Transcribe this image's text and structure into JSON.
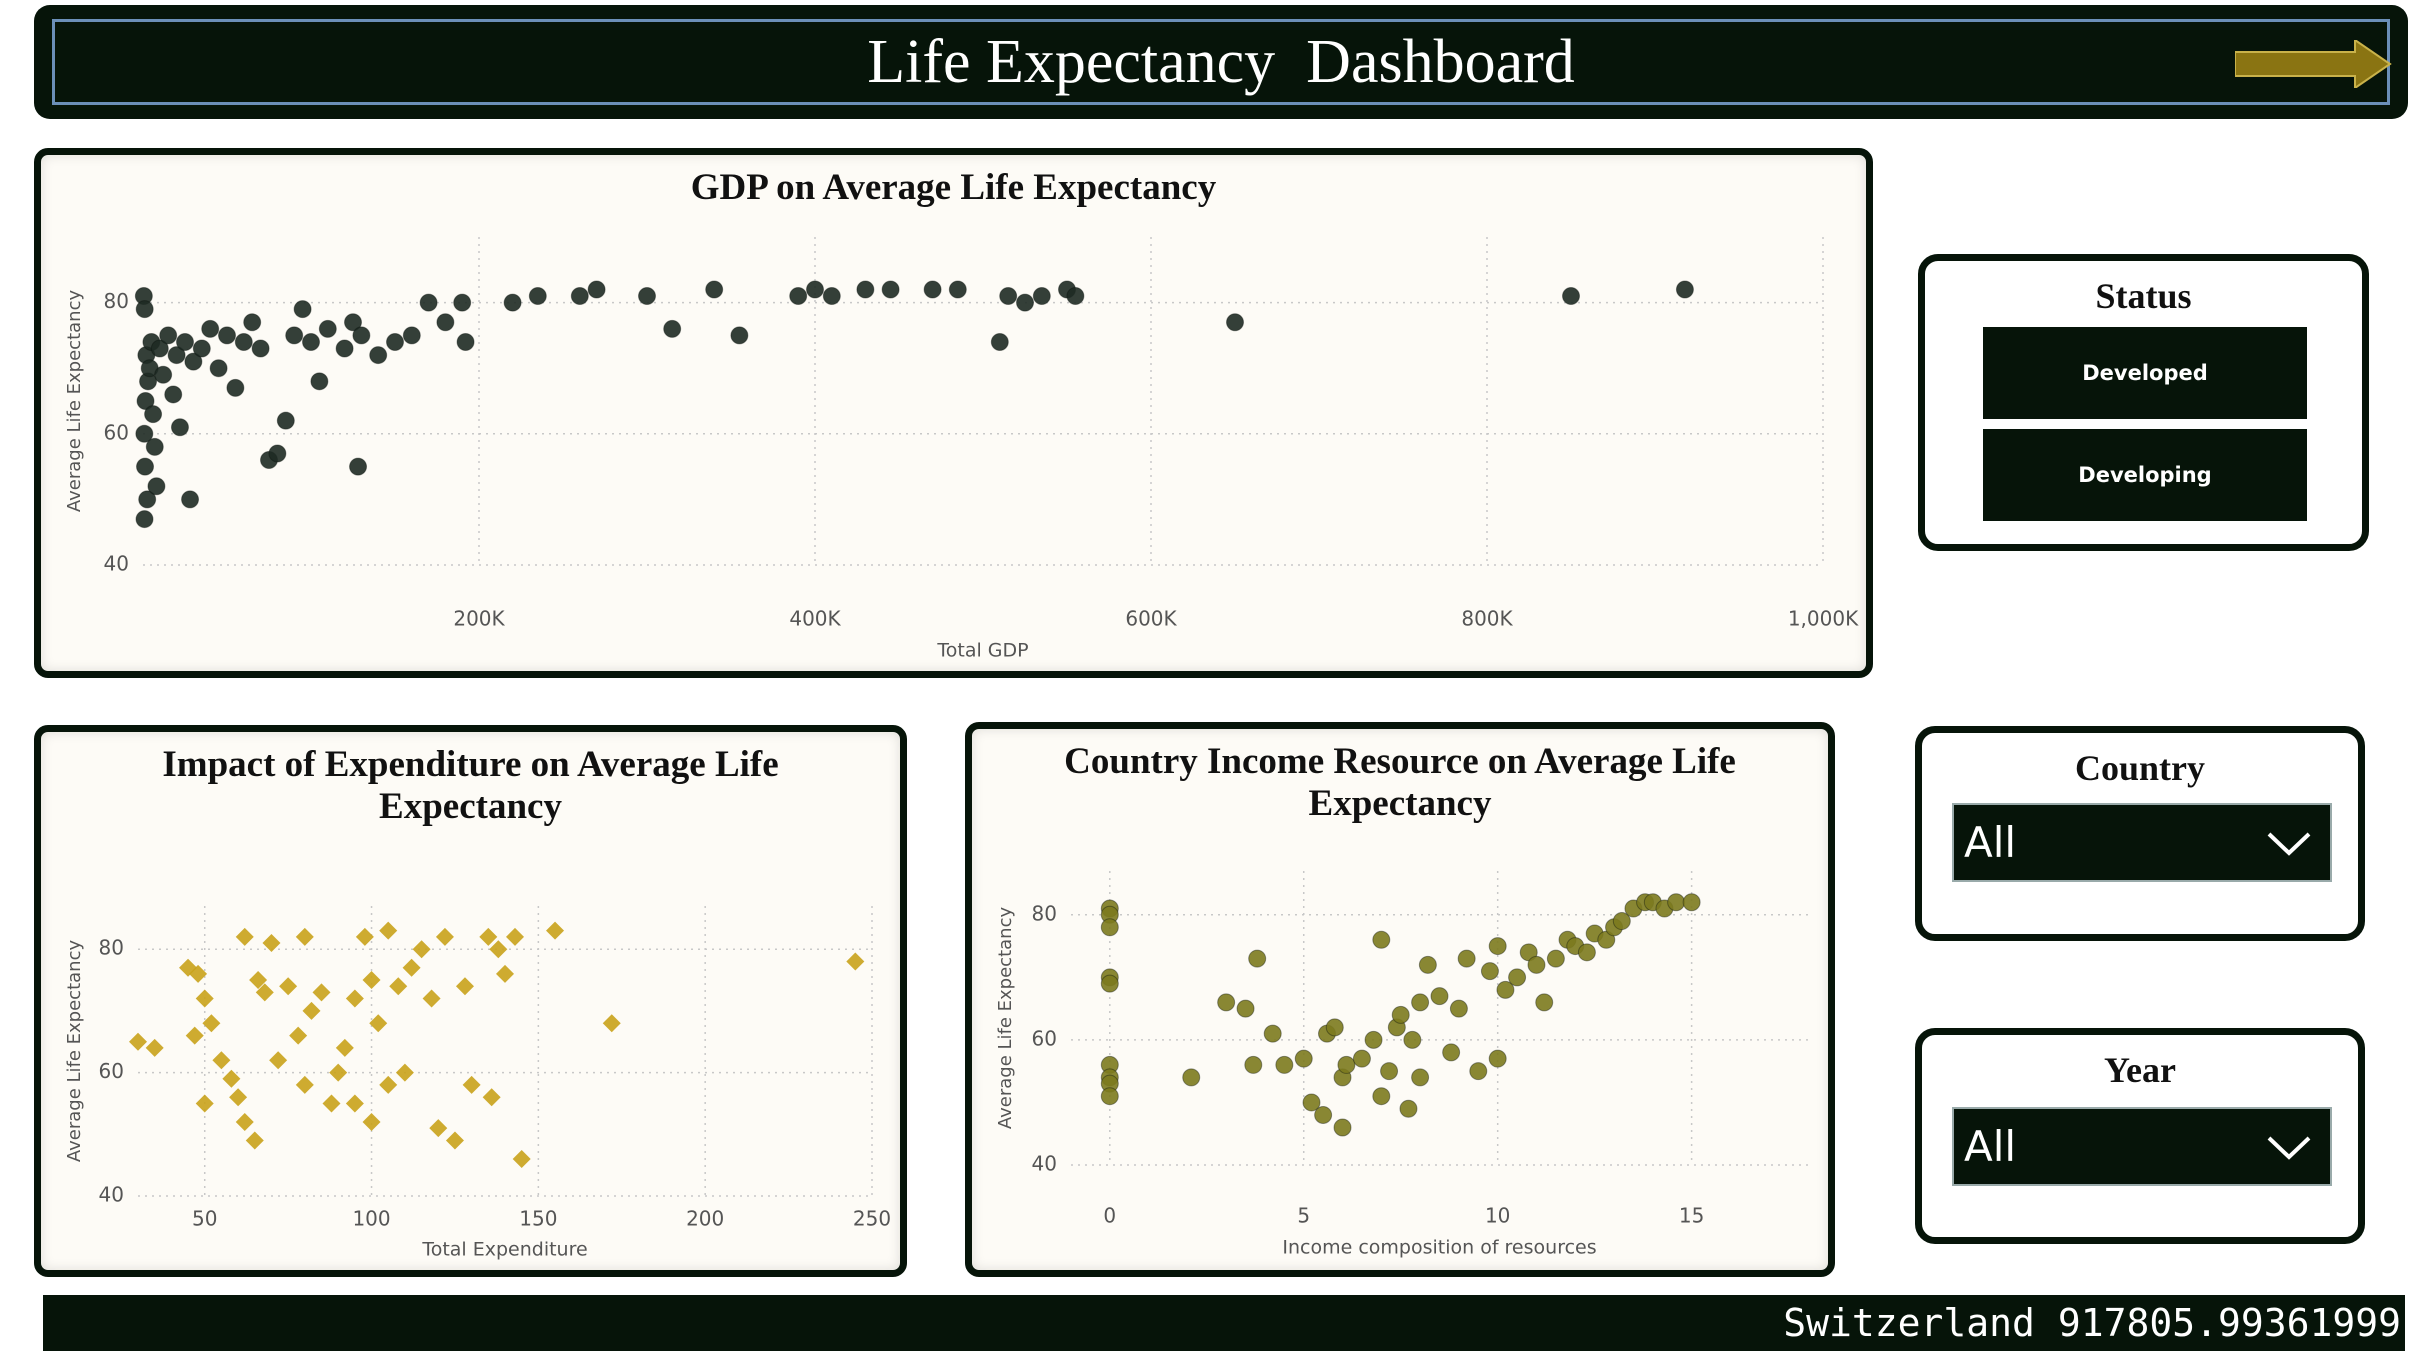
{
  "header": {
    "title": "Life Expectancy  Dashboard"
  },
  "chart_data": [
    {
      "type": "scatter",
      "title": "GDP on Average Life Expectancy",
      "x_label": "Total GDP",
      "y_label": "Average Life Expectancy",
      "color": "#1e2a23",
      "marker": "circle",
      "grid": true,
      "xlim": [
        0,
        1000000
      ],
      "ylim": [
        40,
        90
      ],
      "xticks": [
        {
          "value": 200000,
          "label": "200K"
        },
        {
          "value": 400000,
          "label": "400K"
        },
        {
          "value": 600000,
          "label": "600K"
        },
        {
          "value": 800000,
          "label": "800K"
        },
        {
          "value": 1000000,
          "label": "1,000K"
        }
      ],
      "yticks": [
        40,
        60,
        80
      ],
      "x": [
        500,
        1000,
        2000,
        1500,
        800,
        1200,
        2500,
        900,
        3000,
        4000,
        5000,
        6000,
        7000,
        8000,
        10000,
        12000,
        15000,
        18000,
        20000,
        22000,
        25000,
        28000,
        30000,
        35000,
        40000,
        45000,
        50000,
        55000,
        60000,
        65000,
        70000,
        75000,
        80000,
        85000,
        90000,
        95000,
        100000,
        105000,
        110000,
        120000,
        125000,
        128000,
        130000,
        140000,
        150000,
        160000,
        170000,
        180000,
        190000,
        192000,
        220000,
        235000,
        260000,
        270000,
        300000,
        315000,
        340000,
        355000,
        390000,
        400000,
        410000,
        430000,
        445000,
        470000,
        485000,
        510000,
        515000,
        525000,
        535000,
        550000,
        555000,
        650000,
        850000,
        917806
      ],
      "values": [
        81,
        79,
        72,
        65,
        60,
        55,
        50,
        47,
        68,
        70,
        74,
        63,
        58,
        52,
        73,
        69,
        75,
        66,
        72,
        61,
        74,
        50,
        71,
        73,
        76,
        70,
        75,
        67,
        74,
        77,
        73,
        56,
        57,
        62,
        75,
        79,
        74,
        68,
        76,
        73,
        77,
        55,
        75,
        72,
        74,
        75,
        80,
        77,
        80,
        74,
        80,
        81,
        81,
        82,
        81,
        76,
        82,
        75,
        81,
        82,
        81,
        82,
        82,
        82,
        82,
        74,
        81,
        80,
        81,
        82,
        81,
        77,
        81,
        82
      ]
    },
    {
      "type": "scatter",
      "title": "Impact of Expenditure on Average Life Expectancy",
      "x_label": "Total Expenditure",
      "y_label": "Average Life Expectancy",
      "color": "#c9a21b",
      "marker": "diamond",
      "grid": true,
      "xlim": [
        30,
        250
      ],
      "ylim": [
        40,
        87
      ],
      "xticks": [
        50,
        100,
        150,
        200,
        250
      ],
      "yticks": [
        40,
        60,
        80
      ],
      "x": [
        30,
        35,
        45,
        48,
        50,
        52,
        47,
        55,
        58,
        50,
        60,
        62,
        65,
        68,
        62,
        66,
        70,
        72,
        75,
        78,
        80,
        80,
        82,
        85,
        88,
        90,
        92,
        95,
        95,
        98,
        100,
        100,
        102,
        105,
        105,
        108,
        110,
        112,
        115,
        118,
        120,
        122,
        125,
        128,
        130,
        135,
        136,
        138,
        140,
        143,
        145,
        155,
        172,
        245
      ],
      "values": [
        65,
        64,
        77,
        76,
        72,
        68,
        66,
        62,
        59,
        55,
        56,
        52,
        49,
        73,
        82,
        75,
        81,
        62,
        74,
        66,
        58,
        82,
        70,
        73,
        55,
        60,
        64,
        72,
        55,
        82,
        75,
        52,
        68,
        58,
        83,
        74,
        60,
        77,
        80,
        72,
        51,
        82,
        49,
        74,
        58,
        82,
        56,
        80,
        76,
        82,
        46,
        83,
        68,
        78
      ]
    },
    {
      "type": "scatter",
      "title": "Country Income Resource on Average Life Expectancy",
      "x_label": "Income composition of resources",
      "y_label": "Average Life Expectancy",
      "color": "#7c7a1e",
      "marker": "circle",
      "grid": true,
      "xlim": [
        -1,
        18
      ],
      "ylim": [
        40,
        87
      ],
      "xticks": [
        0,
        5,
        10,
        15
      ],
      "yticks": [
        40,
        60,
        80
      ],
      "x": [
        0,
        0,
        0,
        0,
        0,
        0,
        0,
        0,
        0,
        2.1,
        3,
        3.5,
        3.7,
        3.8,
        4.2,
        4.5,
        5,
        5.2,
        5.5,
        5.6,
        5.8,
        6,
        6,
        6.1,
        6.5,
        6.8,
        7,
        7,
        7.2,
        7.4,
        7.5,
        7.7,
        7.8,
        8,
        8,
        8.2,
        8.5,
        8.8,
        9,
        9.2,
        9.5,
        9.8,
        10,
        10,
        10.2,
        10.5,
        10.8,
        11,
        11.2,
        11.5,
        11.8,
        12,
        12.3,
        12.5,
        12.8,
        13,
        13.2,
        13.5,
        13.8,
        14,
        14.3,
        14.6,
        15
      ],
      "values": [
        81,
        80,
        78,
        70,
        69,
        56,
        54,
        53,
        51,
        54,
        66,
        65,
        56,
        73,
        61,
        56,
        57,
        50,
        48,
        61,
        62,
        54,
        46,
        56,
        57,
        60,
        51,
        76,
        55,
        62,
        64,
        49,
        60,
        66,
        54,
        72,
        67,
        58,
        65,
        73,
        55,
        71,
        75,
        57,
        68,
        70,
        74,
        72,
        66,
        73,
        76,
        75,
        74,
        77,
        76,
        78,
        79,
        81,
        82,
        82,
        81,
        82,
        82
      ]
    }
  ],
  "slicers": {
    "status": {
      "title": "Status",
      "options": [
        "Developed",
        "Developing"
      ]
    },
    "country": {
      "title": "Country",
      "value": "All"
    },
    "year": {
      "title": "Year",
      "value": "All"
    }
  },
  "footer": {
    "text": "Switzerland 917805.99361999"
  }
}
